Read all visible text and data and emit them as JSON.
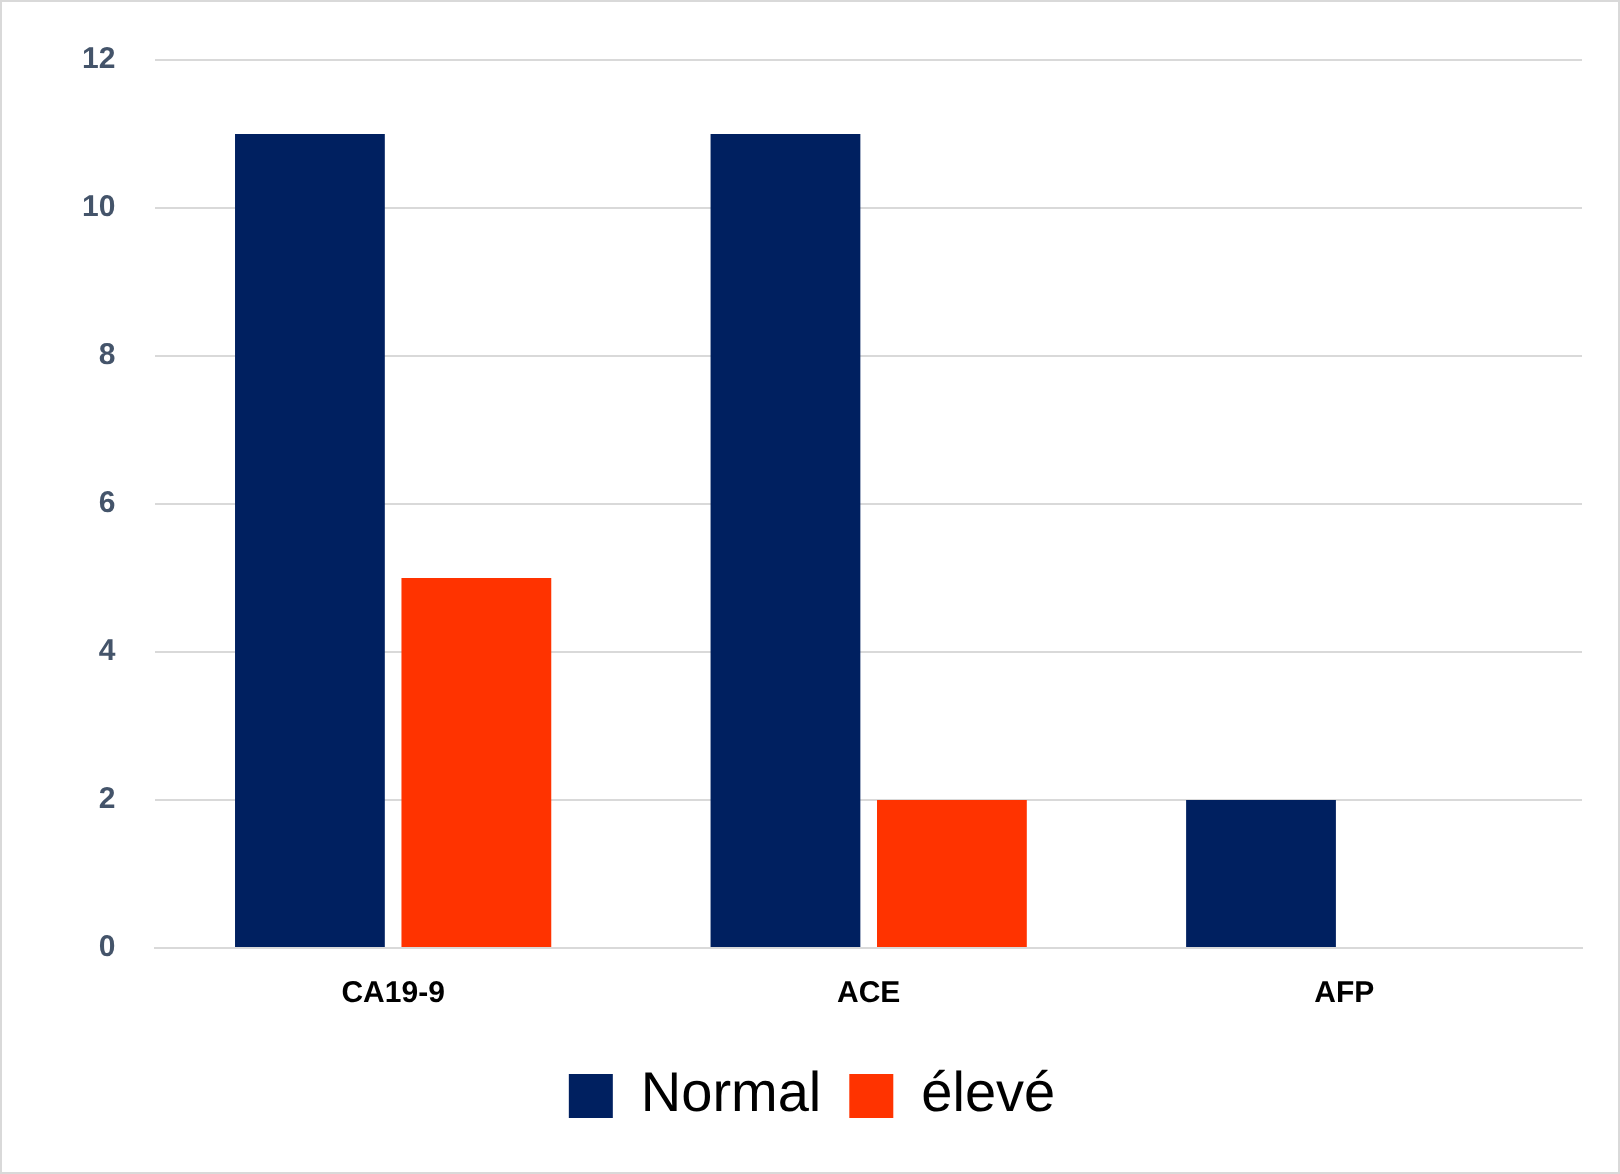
{
  "chart_data": {
    "type": "bar",
    "categories": [
      "CA19-9",
      "ACE",
      "AFP"
    ],
    "series": [
      {
        "name": "Normal",
        "color": "#002060",
        "values": [
          11,
          11,
          2
        ]
      },
      {
        "name": "élevé",
        "color": "#ff3300",
        "values": [
          5,
          2,
          0
        ]
      }
    ],
    "ylim": [
      0,
      12
    ],
    "yticks": [
      0,
      2,
      4,
      6,
      8,
      10,
      12
    ],
    "grid": "y",
    "legend": "bottom"
  }
}
